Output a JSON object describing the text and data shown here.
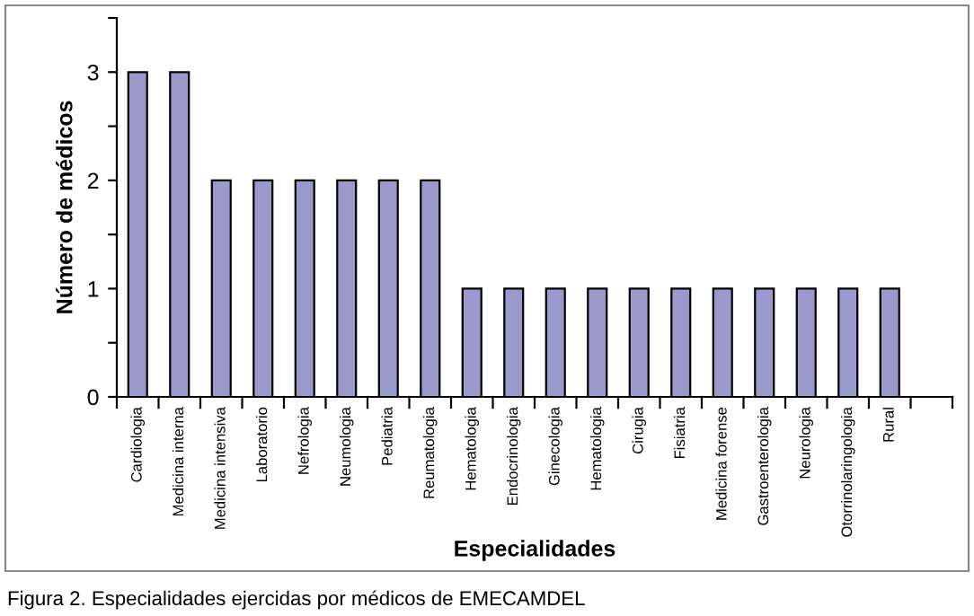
{
  "chart_data": {
    "type": "bar",
    "xlabel": "Especialidades",
    "ylabel": "Número de médicos",
    "categories": [
      "Cardiologia",
      "Medicina interna",
      "Medicina intensiva",
      "Laboratorio",
      "Nefrologia",
      "Neumologia",
      "Pediatria",
      "Reumatologia",
      "Hematologia",
      "Endocrinologia",
      "Ginecologia",
      "Hematologia",
      "Cirugia",
      "Fisiatria",
      "Medicina forense",
      "Gastroenterologia",
      "Neurologia",
      "Otorrinolaringologia",
      "Rural",
      null
    ],
    "values": [
      3,
      3,
      2,
      2,
      2,
      2,
      2,
      2,
      1,
      1,
      1,
      1,
      1,
      1,
      1,
      1,
      1,
      1,
      1,
      null
    ],
    "color": "#9999cc",
    "ylim": [
      0,
      3.5
    ],
    "yticks": [
      0,
      {
        "value": 0.5,
        "label": null
      },
      1,
      {
        "value": 1.5,
        "label": null
      },
      2,
      {
        "value": 2.5,
        "label": null
      },
      3,
      {
        "value": 3.5,
        "label": null
      }
    ],
    "grid": false,
    "legend": false,
    "annotations": [
      "Figura 2. Especialidades ejercidas por médicos de EMECAMDEL"
    ]
  }
}
